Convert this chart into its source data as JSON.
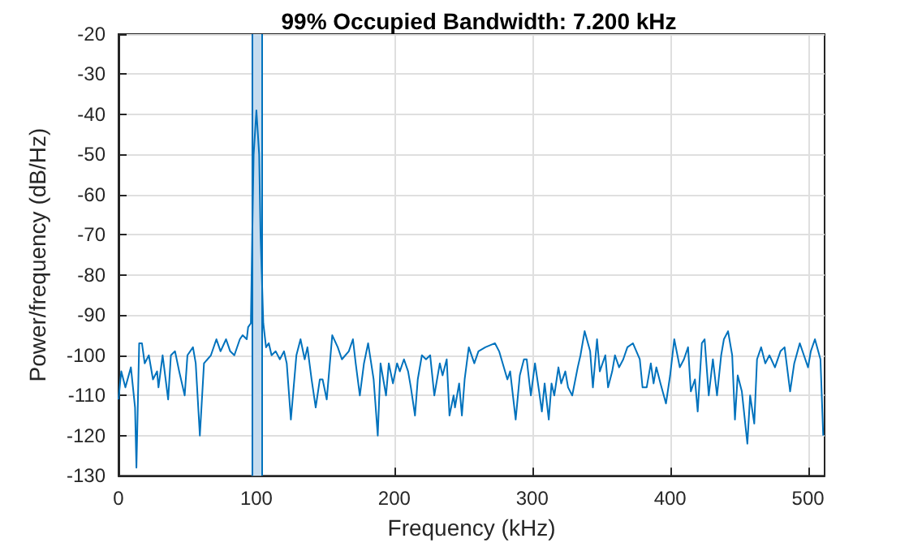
{
  "chart_data": {
    "type": "line",
    "title": "99% Occupied Bandwidth: 7.200 kHz",
    "xlabel": "Frequency (kHz)",
    "ylabel": "Power/frequency (dB/Hz)",
    "x": [
      0,
      2,
      5,
      9,
      12,
      13,
      15,
      17,
      19,
      22,
      25,
      28,
      29,
      32,
      36,
      38,
      41,
      44,
      48,
      50,
      54,
      56,
      59,
      62,
      67,
      71,
      74,
      78,
      81,
      84,
      88,
      90,
      93,
      94,
      96,
      97,
      98,
      100,
      102,
      103,
      105,
      107,
      109,
      111,
      114,
      117,
      120,
      122,
      125,
      127,
      129,
      132,
      135,
      137,
      140,
      143,
      146,
      148,
      151,
      155,
      159,
      162,
      167,
      170,
      172,
      175,
      178,
      181,
      185,
      188,
      190,
      194,
      196,
      199,
      202,
      204,
      207,
      210,
      212,
      215,
      217,
      220,
      223,
      226,
      229,
      233,
      235,
      238,
      240,
      243,
      244,
      247,
      249,
      251,
      254,
      258,
      261,
      266,
      273,
      276,
      282,
      284,
      288,
      291,
      294,
      296,
      299,
      302,
      305,
      307,
      309,
      312,
      314,
      316,
      319,
      321,
      324,
      326,
      329,
      333,
      335,
      338,
      342,
      344,
      347,
      349,
      353,
      355,
      358,
      360,
      363,
      366,
      369,
      373,
      378,
      380,
      383,
      386,
      388,
      390,
      393,
      397,
      400,
      403,
      407,
      410,
      413,
      415,
      418,
      420,
      423,
      425,
      428,
      431,
      434,
      437,
      439,
      442,
      445,
      447,
      449,
      452,
      456,
      458,
      461,
      463,
      466,
      469,
      472,
      476,
      480,
      483,
      487,
      490,
      494,
      497,
      500,
      502,
      505,
      509,
      511
    ],
    "values": [
      -111,
      -104,
      -108,
      -103,
      -113,
      -128,
      -97,
      -97,
      -102,
      -100,
      -106,
      -104,
      -108,
      -100,
      -111,
      -100,
      -99,
      -104,
      -110,
      -100,
      -98,
      -102,
      -120,
      -102,
      -100,
      -96,
      -99,
      -96,
      -99,
      -100,
      -96,
      -95,
      -96,
      -93,
      -92,
      -70,
      -50,
      -39,
      -50,
      -70,
      -92,
      -98,
      -97,
      -100,
      -99,
      -101,
      -99,
      -102,
      -116,
      -108,
      -100,
      -96,
      -101,
      -98,
      -106,
      -113,
      -106,
      -106,
      -111,
      -95,
      -98,
      -101,
      -99,
      -96,
      -102,
      -110,
      -102,
      -97,
      -106,
      -120,
      -102,
      -110,
      -102,
      -107,
      -102,
      -104,
      -101,
      -104,
      -108,
      -115,
      -106,
      -100,
      -101,
      -100,
      -110,
      -102,
      -105,
      -101,
      -115,
      -110,
      -113,
      -107,
      -115,
      -106,
      -98,
      -102,
      -99,
      -98,
      -97,
      -99,
      -106,
      -104,
      -116,
      -105,
      -101,
      -101,
      -110,
      -102,
      -109,
      -114,
      -107,
      -116,
      -107,
      -110,
      -103,
      -107,
      -104,
      -108,
      -110,
      -103,
      -100,
      -94,
      -99,
      -108,
      -96,
      -104,
      -100,
      -108,
      -104,
      -100,
      -103,
      -101,
      -98,
      -97,
      -101,
      -108,
      -108,
      -102,
      -107,
      -103,
      -107,
      -112,
      -105,
      -96,
      -103,
      -101,
      -98,
      -109,
      -106,
      -114,
      -97,
      -96,
      -110,
      -101,
      -110,
      -100,
      -96,
      -94,
      -100,
      -116,
      -105,
      -109,
      -122,
      -110,
      -117,
      -101,
      -98,
      -102,
      -100,
      -103,
      -99,
      -98,
      -109,
      -102,
      -97,
      -100,
      -103,
      -99,
      -96,
      -101,
      -120
    ],
    "color": "#0072bd",
    "xlim": [
      0,
      512
    ],
    "xticks": [
      0,
      100,
      200,
      300,
      400,
      500
    ],
    "ylim": [
      -130,
      -20
    ],
    "yticks": [
      -130,
      -120,
      -110,
      -100,
      -90,
      -80,
      -70,
      -60,
      -50,
      -40,
      -30,
      -20
    ],
    "grid": true,
    "bands": [
      {
        "axis": "x",
        "from": 96.4,
        "to": 103.6,
        "color": "#c6dcef"
      }
    ],
    "ref_lines": [
      {
        "axis": "x",
        "value": 96.4,
        "color": "#0072bd"
      },
      {
        "axis": "x",
        "value": 103.6,
        "color": "#0072bd"
      }
    ]
  }
}
